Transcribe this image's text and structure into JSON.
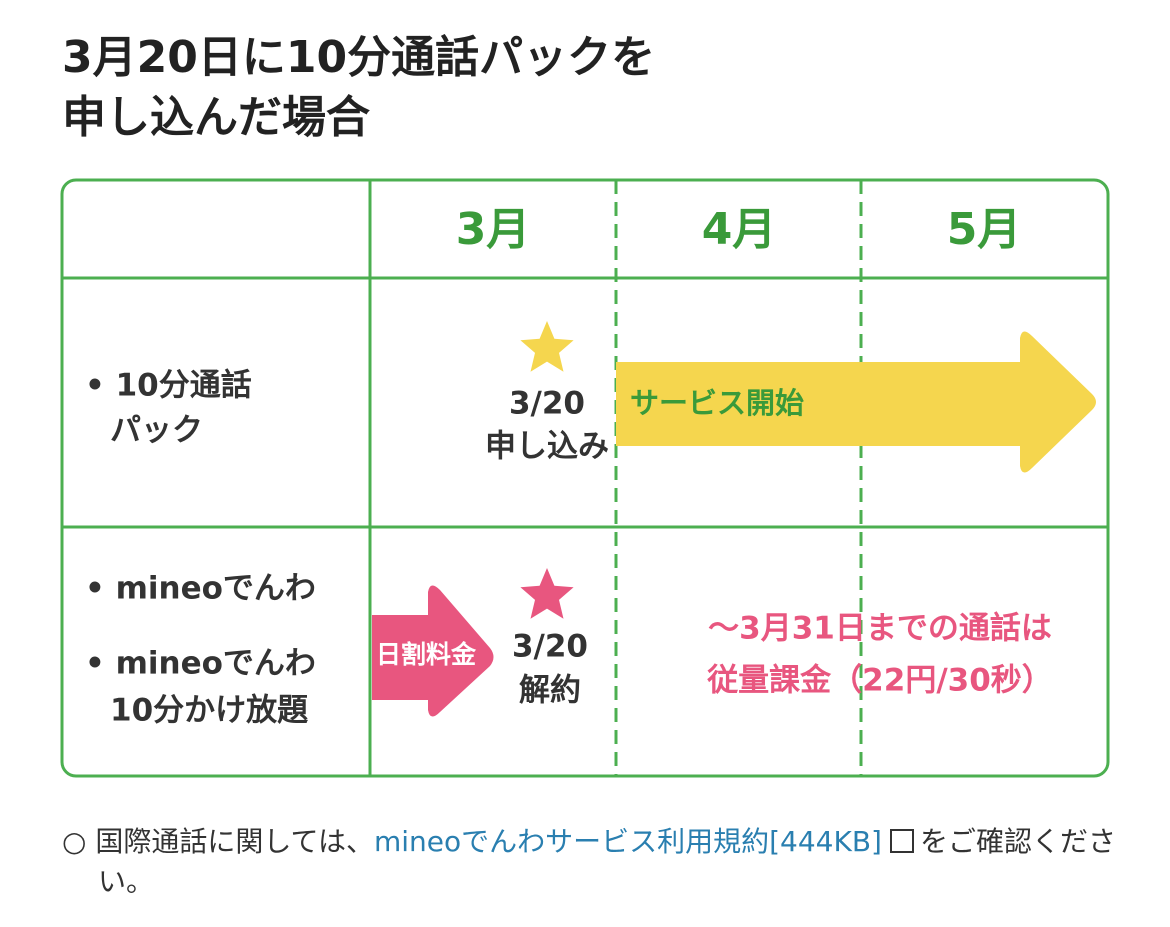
{
  "header": {
    "title": [
      "3月20日に10分通話パックを",
      "申し込んだ場合"
    ]
  },
  "table": {
    "months": [
      "3月",
      "4月",
      "5月"
    ],
    "rows": [
      {
        "label": [
          "• 10分通話",
          "パック"
        ],
        "event": [
          "3/20",
          "申し込み"
        ],
        "arrow": "サービス開始"
      },
      {
        "label": [
          "• mineoでんわ",
          "• mineoでんわ",
          "10分かけ放題"
        ],
        "arrow": "日割料金",
        "event": [
          "3/20",
          "解約"
        ],
        "note": [
          "～3月31日までの通話は",
          "従量課金（22円/30秒）"
        ]
      }
    ]
  },
  "footnote": {
    "bullet": "○",
    "before": "国際通話に関しては、",
    "link": "mineoでんわサービス利用規約[444KB]",
    "after": "をご確認ください。"
  }
}
